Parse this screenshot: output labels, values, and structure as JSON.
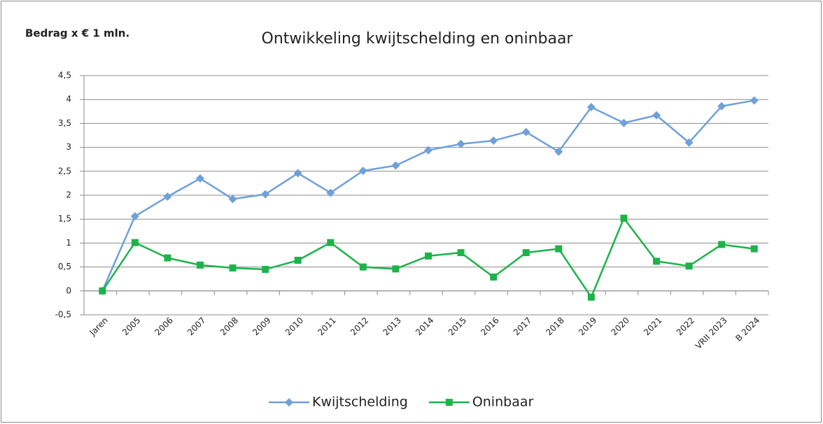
{
  "chart_data": {
    "type": "line",
    "title": "Ontwikkeling kwijtschelding en oninbaar",
    "y_label": "Bedrag x  € 1 mln.",
    "categories": [
      "Jaren",
      "2005",
      "2006",
      "2007",
      "2008",
      "2009",
      "2010",
      "2011",
      "2012",
      "2013",
      "2014",
      "2015",
      "2016",
      "2017",
      "2018",
      "2019",
      "2020",
      "2021",
      "2022",
      "VRII 2023",
      "B 2024"
    ],
    "series": [
      {
        "name": "Kwijtschelding",
        "color": "#6fa0d8",
        "marker": "diamond",
        "values": [
          0,
          1.56,
          1.97,
          2.35,
          1.92,
          2.02,
          2.46,
          2.05,
          2.51,
          2.62,
          2.94,
          3.07,
          3.14,
          3.32,
          2.91,
          3.84,
          3.51,
          3.67,
          3.1,
          3.86,
          3.98
        ]
      },
      {
        "name": "Oninbaar",
        "color": "#1db34a",
        "marker": "square",
        "values": [
          0,
          1.01,
          0.69,
          0.54,
          0.48,
          0.45,
          0.64,
          1.01,
          0.5,
          0.46,
          0.73,
          0.8,
          0.29,
          0.8,
          0.88,
          -0.13,
          1.52,
          0.62,
          0.52,
          0.97,
          0.88
        ]
      }
    ],
    "ylim": [
      -0.5,
      4.5
    ],
    "yticks": [
      {
        "value": -0.5,
        "label": "-0,5"
      },
      0,
      {
        "value": 0.5,
        "label": "0,5"
      },
      1,
      {
        "value": 1.5,
        "label": "1,5"
      },
      2,
      {
        "value": 2.5,
        "label": "2,5"
      },
      3,
      {
        "value": 3.5,
        "label": "3,5"
      },
      4,
      {
        "value": 4.5,
        "label": "4,5"
      }
    ],
    "grid": true,
    "legend": "bottom"
  }
}
